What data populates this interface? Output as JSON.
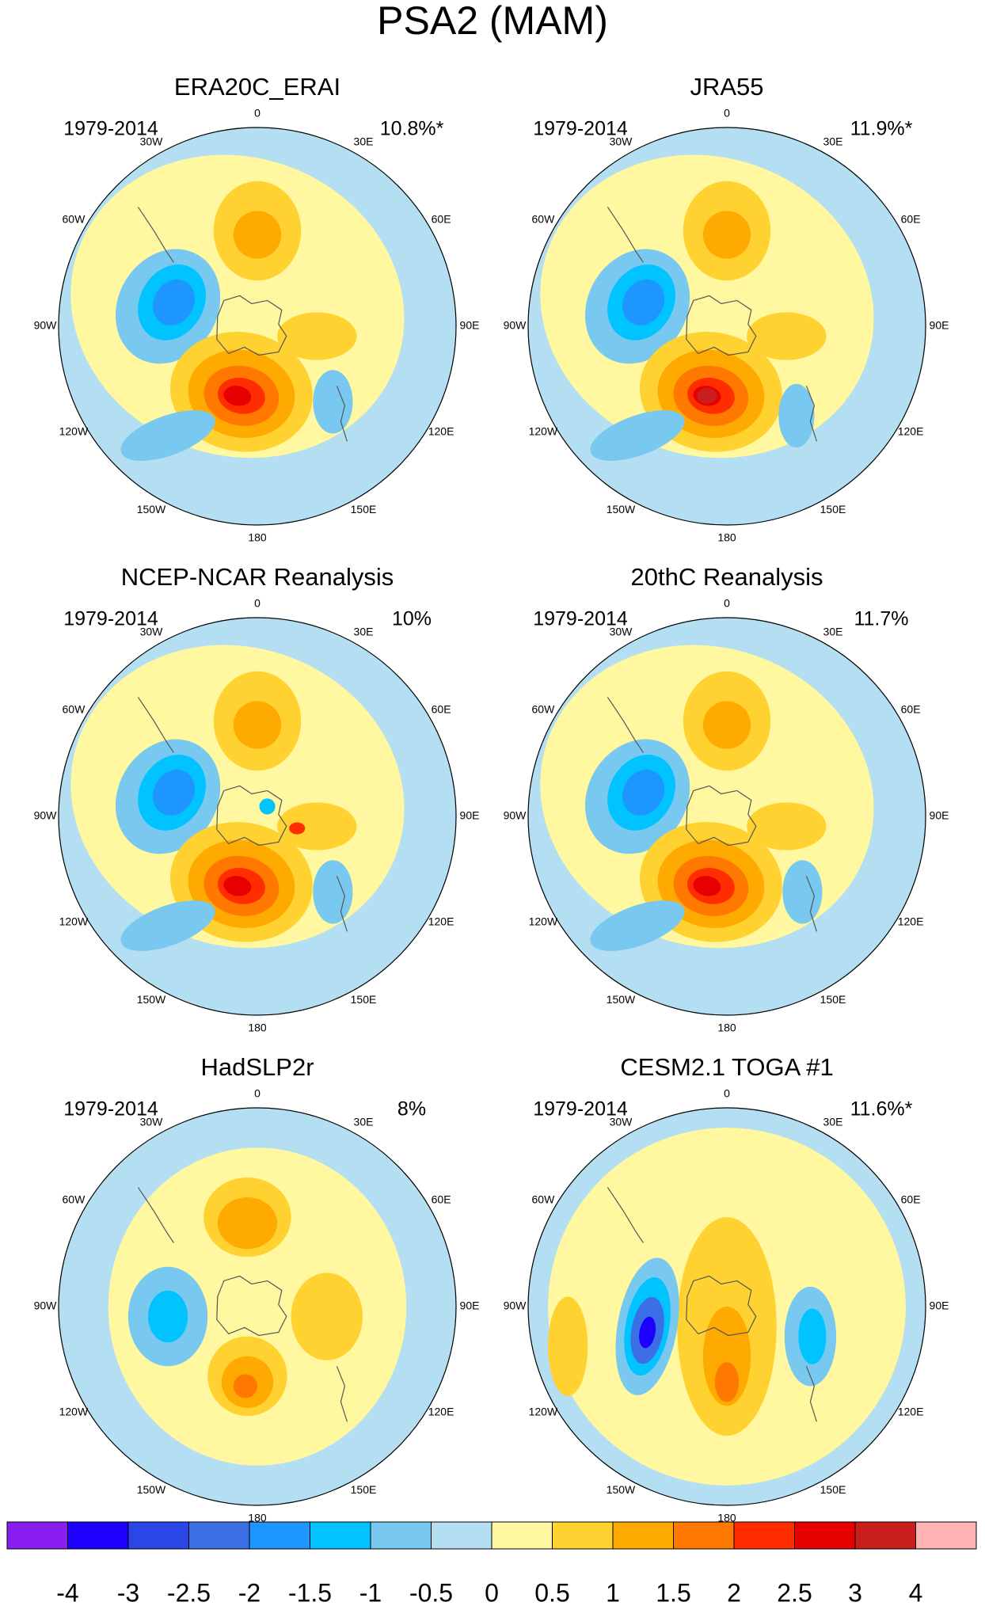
{
  "title": "PSA2 (MAM)",
  "panels": [
    {
      "title": "ERA20C_ERAI",
      "period": "1979-2014",
      "variance": "10.8%*"
    },
    {
      "title": "JRA55",
      "period": "1979-2014",
      "variance": "11.9%*"
    },
    {
      "title": "NCEP-NCAR Reanalysis",
      "period": "1979-2014",
      "variance": "10%"
    },
    {
      "title": "20thC Reanalysis",
      "period": "1979-2014",
      "variance": "11.7%"
    },
    {
      "title": "HadSLP2r",
      "period": "1979-2014",
      "variance": "8%"
    },
    {
      "title": "CESM2.1 TOGA #1",
      "period": "1979-2014",
      "variance": "11.6%*"
    }
  ],
  "longitude_labels": [
    "0",
    "30E",
    "60E",
    "90E",
    "120E",
    "150E",
    "180",
    "150W",
    "120W",
    "90W",
    "60W",
    "30W"
  ],
  "colorbar": {
    "colors": [
      "#8a1ef0",
      "#1e00ff",
      "#2a46e6",
      "#3c6ee6",
      "#1e96ff",
      "#00c3ff",
      "#78c8f0",
      "#b4def2",
      "#fff8a0",
      "#ffd232",
      "#ffaa00",
      "#ff7800",
      "#ff2d00",
      "#e60000",
      "#c81e1e",
      "#ffb4b4"
    ],
    "ticks": [
      -4,
      -3,
      -2.5,
      -2,
      -1.5,
      -1,
      -0.5,
      0,
      0.5,
      1,
      1.5,
      2,
      2.5,
      3,
      4
    ]
  }
}
